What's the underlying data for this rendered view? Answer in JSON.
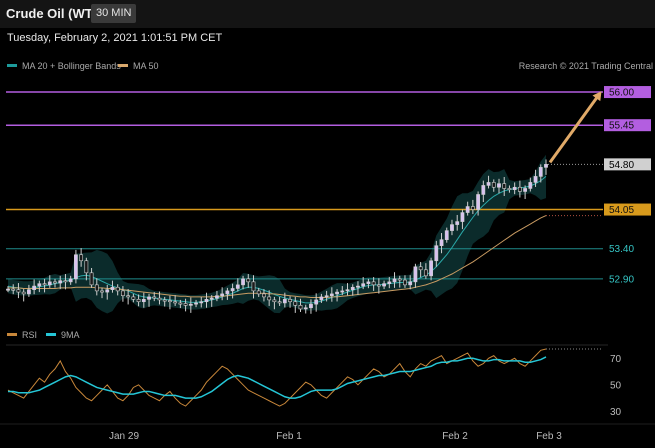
{
  "header": {
    "title": "Crude Oil (WTI)",
    "interval": "30 MIN"
  },
  "timestamp": "Tuesday, February 2, 2021 1:01:51 PM CET",
  "legend": [
    {
      "label": "MA 20 + Bollinger Bands",
      "color": "#1d9b9b"
    },
    {
      "label": "MA 50",
      "color": "#d9a86c"
    }
  ],
  "credit": "Research © 2021 Trading Central",
  "chart_data": [
    {
      "type": "candlestick",
      "y_range": [
        52.25,
        56.2
      ],
      "levels": [
        {
          "value": "56.00",
          "kind": "resistance",
          "color": "#b35ee0"
        },
        {
          "value": "55.45",
          "kind": "resistance",
          "color": "#b35ee0"
        },
        {
          "value": "54.80",
          "kind": "last",
          "color": "#d0d0d0"
        },
        {
          "value": "54.05",
          "kind": "pivot",
          "color": "#d89a1c"
        },
        {
          "value": "53.40",
          "kind": "support",
          "color": "#1f8c8c"
        },
        {
          "value": "52.90",
          "kind": "support",
          "color": "#1f8c8c"
        }
      ],
      "projection": {
        "from": 54.8,
        "to": 56.0
      },
      "x_ticks": [
        "Jan 29",
        "Feb 1",
        "Feb 2",
        "Feb 3"
      ],
      "closes": [
        52.73,
        52.72,
        52.68,
        52.65,
        52.72,
        52.78,
        52.82,
        52.8,
        52.85,
        52.83,
        52.87,
        52.85,
        52.9,
        53.3,
        53.2,
        53.0,
        52.8,
        52.7,
        52.68,
        52.72,
        52.76,
        52.7,
        52.62,
        52.6,
        52.56,
        52.52,
        52.56,
        52.6,
        52.58,
        52.55,
        52.54,
        52.52,
        52.5,
        52.49,
        52.46,
        52.48,
        52.5,
        52.52,
        52.56,
        52.58,
        52.62,
        52.65,
        52.7,
        52.74,
        52.8,
        52.9,
        52.85,
        52.7,
        52.65,
        52.6,
        52.55,
        52.52,
        52.5,
        52.56,
        52.52,
        52.46,
        52.4,
        52.42,
        52.48,
        52.55,
        52.6,
        52.62,
        52.65,
        52.68,
        52.7,
        52.72,
        52.76,
        52.78,
        52.82,
        52.85,
        52.8,
        52.78,
        52.82,
        52.85,
        52.9,
        52.88,
        52.8,
        52.85,
        53.1,
        53.05,
        52.95,
        53.2,
        53.45,
        53.55,
        53.7,
        53.8,
        53.85,
        54.0,
        54.1,
        54.05,
        54.3,
        54.45,
        54.5,
        54.42,
        54.48,
        54.4,
        54.38,
        54.42,
        54.35,
        54.4,
        54.5,
        54.6,
        54.75,
        54.8
      ],
      "ma20": [
        52.78,
        52.76,
        52.75,
        52.74,
        52.74,
        52.75,
        52.77,
        52.78,
        52.8,
        52.82,
        52.84,
        52.86,
        52.88,
        52.92,
        52.95,
        52.96,
        52.94,
        52.9,
        52.86,
        52.82,
        52.78,
        52.75,
        52.72,
        52.7,
        52.66,
        52.62,
        52.6,
        52.59,
        52.58,
        52.57,
        52.56,
        52.55,
        52.54,
        52.53,
        52.52,
        52.51,
        52.51,
        52.52,
        52.53,
        52.55,
        52.57,
        52.6,
        52.63,
        52.66,
        52.7,
        52.74,
        52.76,
        52.76,
        52.74,
        52.71,
        52.68,
        52.64,
        52.61,
        52.58,
        52.56,
        52.54,
        52.52,
        52.5,
        52.5,
        52.51,
        52.53,
        52.56,
        52.59,
        52.62,
        52.65,
        52.68,
        52.71,
        52.74,
        52.77,
        52.79,
        52.8,
        52.8,
        52.81,
        52.82,
        52.83,
        52.84,
        52.84,
        52.85,
        52.88,
        52.92,
        52.96,
        53.02,
        53.1,
        53.2,
        53.3,
        53.42,
        53.55,
        53.68,
        53.8,
        53.92,
        54.03,
        54.12,
        54.2,
        54.27,
        54.32,
        54.36,
        54.38,
        54.4,
        54.41,
        54.42,
        54.44,
        54.48,
        54.53,
        54.6
      ],
      "ma50": [
        52.75,
        52.75,
        52.75,
        52.74,
        52.74,
        52.74,
        52.74,
        52.74,
        52.74,
        52.74,
        52.75,
        52.75,
        52.75,
        52.76,
        52.76,
        52.76,
        52.76,
        52.75,
        52.75,
        52.74,
        52.74,
        52.73,
        52.72,
        52.71,
        52.7,
        52.69,
        52.68,
        52.67,
        52.66,
        52.65,
        52.64,
        52.63,
        52.62,
        52.61,
        52.61,
        52.6,
        52.6,
        52.6,
        52.6,
        52.6,
        52.61,
        52.61,
        52.62,
        52.63,
        52.64,
        52.65,
        52.66,
        52.66,
        52.66,
        52.66,
        52.65,
        52.65,
        52.64,
        52.63,
        52.62,
        52.61,
        52.6,
        52.6,
        52.59,
        52.59,
        52.59,
        52.59,
        52.6,
        52.6,
        52.61,
        52.62,
        52.63,
        52.64,
        52.65,
        52.66,
        52.67,
        52.68,
        52.69,
        52.7,
        52.71,
        52.72,
        52.73,
        52.74,
        52.76,
        52.78,
        52.8,
        52.83,
        52.86,
        52.9,
        52.94,
        52.98,
        53.03,
        53.08,
        53.13,
        53.18,
        53.24,
        53.3,
        53.36,
        53.42,
        53.48,
        53.54,
        53.6,
        53.66,
        53.71,
        53.76,
        53.81,
        53.86,
        53.91,
        53.95
      ]
    },
    {
      "type": "line",
      "legend": [
        {
          "label": "RSI",
          "color": "#c8873a"
        },
        {
          "label": "9MA",
          "color": "#25c6d6"
        }
      ],
      "y_ticks": [
        "70",
        "50",
        "30"
      ],
      "y_range": [
        25,
        80
      ],
      "rsi": [
        46,
        44,
        42,
        40,
        45,
        50,
        55,
        52,
        58,
        62,
        68,
        60,
        55,
        48,
        44,
        40,
        38,
        42,
        46,
        50,
        45,
        40,
        38,
        42,
        48,
        50,
        46,
        42,
        40,
        38,
        42,
        45,
        40,
        36,
        34,
        38,
        42,
        46,
        52,
        56,
        60,
        64,
        62,
        58,
        54,
        50,
        46,
        44,
        42,
        40,
        38,
        36,
        34,
        36,
        40,
        44,
        48,
        52,
        50,
        46,
        42,
        40,
        44,
        48,
        52,
        56,
        54,
        50,
        54,
        58,
        62,
        60,
        56,
        58,
        62,
        66,
        60,
        56,
        62,
        66,
        64,
        68,
        70,
        72,
        66,
        68,
        70,
        72,
        74,
        68,
        64,
        66,
        70,
        72,
        68,
        66,
        68,
        70,
        66,
        64,
        68,
        72,
        76,
        77
      ],
      "ma9": [
        45,
        45,
        44,
        44,
        44,
        45,
        46,
        48,
        50,
        52,
        54,
        56,
        57,
        56,
        54,
        52,
        50,
        48,
        47,
        46,
        45,
        44,
        43,
        43,
        43,
        44,
        45,
        45,
        44,
        43,
        42,
        42,
        42,
        41,
        40,
        40,
        40,
        41,
        43,
        45,
        48,
        51,
        54,
        56,
        57,
        56,
        55,
        53,
        51,
        49,
        47,
        45,
        43,
        41,
        40,
        40,
        41,
        43,
        45,
        46,
        46,
        46,
        46,
        47,
        49,
        51,
        52,
        53,
        54,
        55,
        56,
        57,
        57,
        58,
        59,
        60,
        60,
        60,
        61,
        62,
        63,
        64,
        66,
        67,
        67,
        68,
        68,
        69,
        70,
        70,
        69,
        68,
        68,
        69,
        69,
        68,
        68,
        68,
        68,
        67,
        67,
        68,
        69,
        71
      ]
    }
  ]
}
